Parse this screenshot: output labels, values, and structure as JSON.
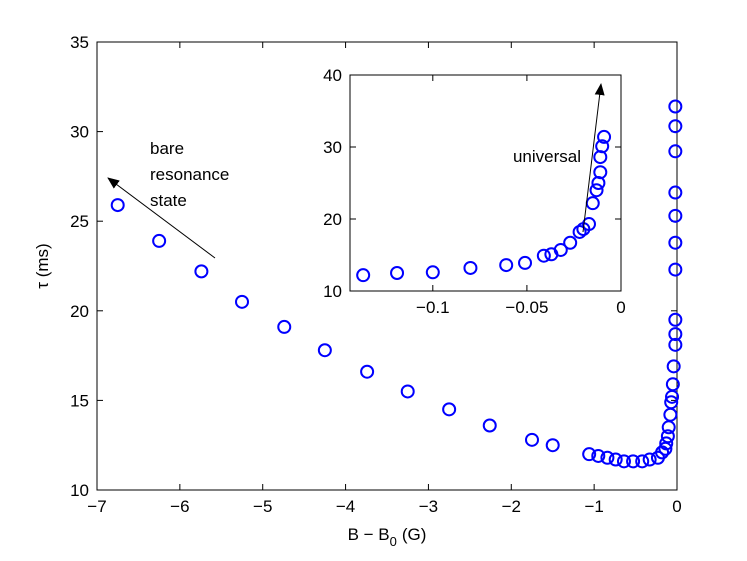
{
  "chart_data": [
    {
      "type": "scatter",
      "x_label": [
        "B − B",
        "0",
        "(G)"
      ],
      "y_label": "τ (ms)",
      "annotation": [
        "bare",
        "resonance",
        "state"
      ],
      "xlim": [
        -7,
        0
      ],
      "ylim": [
        10,
        35
      ],
      "xticks": [
        {
          "value": -7,
          "label": "−7"
        },
        {
          "value": -6,
          "label": "−6"
        },
        {
          "value": -5,
          "label": "−5"
        },
        {
          "value": -4,
          "label": "−4"
        },
        {
          "value": -3,
          "label": "−3"
        },
        {
          "value": -2,
          "label": "−2"
        },
        {
          "value": -1,
          "label": "−1"
        },
        0
      ],
      "yticks": [
        10,
        15,
        20,
        25,
        30,
        35
      ],
      "series": [
        {
          "color": "#0000ff",
          "x": [
            -6.75,
            -6.25,
            -5.74,
            -5.25,
            -4.74,
            -4.25,
            -3.74,
            -3.25,
            -2.75,
            -2.26,
            -1.75,
            -1.5,
            -1.06,
            -0.95,
            -0.84,
            -0.74,
            -0.64,
            -0.53,
            -0.42,
            -0.33,
            -0.23,
            -0.18,
            -0.14,
            -0.13,
            -0.11,
            -0.1,
            -0.08,
            -0.07,
            -0.06,
            -0.05,
            -0.04,
            -0.02,
            -0.02,
            -0.02,
            -0.02,
            -0.02,
            -0.02,
            -0.02,
            -0.02,
            -0.02,
            -0.02
          ],
          "values": [
            25.9,
            23.9,
            22.2,
            20.5,
            19.1,
            17.8,
            16.6,
            15.5,
            14.5,
            13.6,
            12.8,
            12.5,
            12.0,
            11.9,
            11.8,
            11.7,
            11.6,
            11.6,
            11.6,
            11.7,
            11.8,
            12.1,
            12.3,
            12.6,
            13.0,
            13.5,
            14.2,
            14.9,
            15.2,
            15.9,
            16.9,
            18.1,
            18.7,
            19.5,
            22.3,
            23.8,
            25.3,
            26.6,
            28.9,
            30.3,
            31.4
          ]
        }
      ]
    },
    {
      "type": "scatter",
      "annotation": "universal",
      "xlim": [
        -0.144,
        0
      ],
      "ylim": [
        10,
        40
      ],
      "xticks": [
        {
          "value": -0.1,
          "label": "−0.1"
        },
        {
          "value": -0.05,
          "label": "−0.05"
        },
        0
      ],
      "yticks": [
        10,
        20,
        30,
        40
      ],
      "series": [
        {
          "color": "#0000ff",
          "x": [
            -0.137,
            -0.119,
            -0.1,
            -0.08,
            -0.061,
            -0.051,
            -0.041,
            -0.037,
            -0.032,
            -0.027,
            -0.022,
            -0.02,
            -0.017,
            -0.015,
            -0.013,
            -0.012,
            -0.011,
            -0.011,
            -0.01,
            -0.009
          ],
          "values": [
            12.2,
            12.5,
            12.6,
            13.2,
            13.6,
            13.9,
            14.9,
            15.1,
            15.7,
            16.7,
            18.2,
            18.6,
            19.3,
            22.2,
            24.0,
            25.0,
            26.5,
            28.6,
            30.1,
            31.4
          ]
        }
      ]
    }
  ]
}
